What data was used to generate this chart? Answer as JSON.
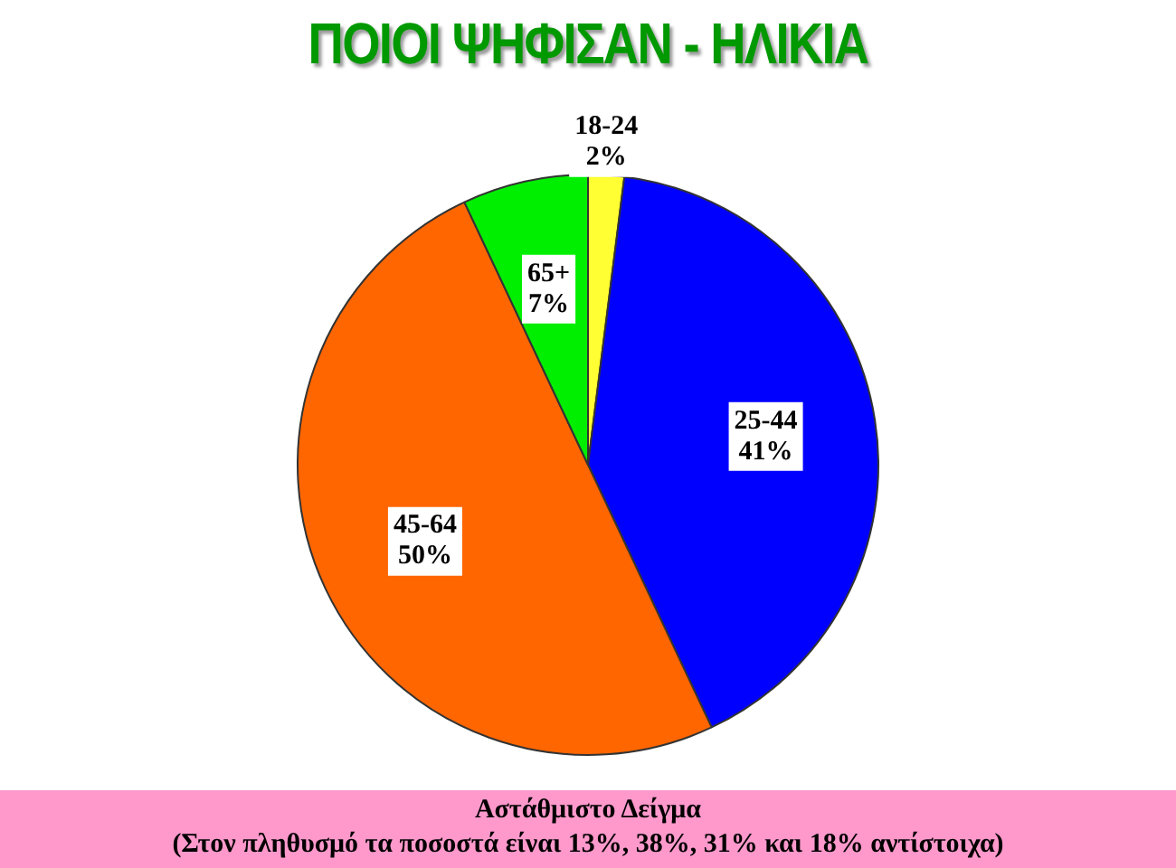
{
  "chart_data": {
    "type": "pie",
    "title": "ΠΟΙΟΙ ΨΗΦΙΣΑΝ - ΗΛΙΚΙΑ",
    "categories": [
      "18-24",
      "25-44",
      "45-64",
      "65+"
    ],
    "values": [
      2,
      41,
      50,
      7
    ],
    "value_labels": [
      "2%",
      "41%",
      "50%",
      "7%"
    ],
    "colors": [
      "#ffff33",
      "#0000ff",
      "#ff6600",
      "#00ee00"
    ],
    "legend": false,
    "annotations": [
      "Αστάθμιστο Δείγμα",
      "(Στον πληθυσμό τα ποσοστά είναι 13%, 38%, 31% και 18% αντίστοιχα)"
    ]
  }
}
